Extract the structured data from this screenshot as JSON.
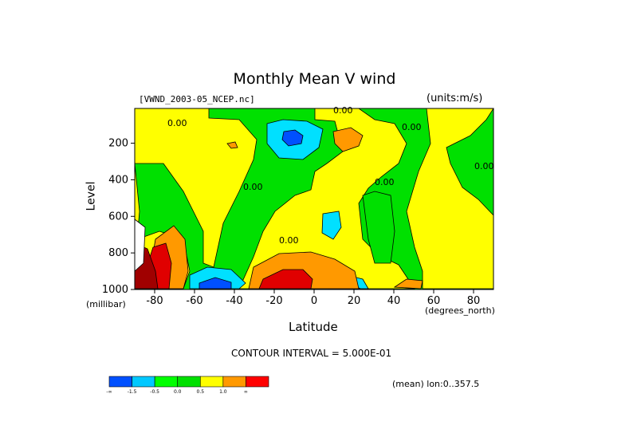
{
  "chart_data": {
    "type": "heatmap",
    "title": "Monthly Mean V wind",
    "dataset": "[VWND_2003-05_NCEP.nc]",
    "units": "(units:m/s)",
    "xlabel": "Latitude",
    "xunit": "(degrees_north)",
    "ylabel": "Level",
    "yunit": "(millibar)",
    "x_ticks": [
      -80,
      -60,
      -40,
      -20,
      0,
      20,
      40,
      60,
      80
    ],
    "y_ticks": [
      200,
      400,
      600,
      800,
      1000
    ],
    "xlim": [
      -90,
      90
    ],
    "ylim": [
      10,
      1000
    ],
    "y_inverted": true,
    "contour_interval_text": "CONTOUR INTERVAL = 5.000E-01",
    "mean_text": "(mean) lon:0..357.5",
    "contour_labels": [
      "0.00",
      "0.00",
      "0.00",
      "0.00",
      "0.00",
      "0.00",
      "0.00"
    ],
    "colorbar": {
      "labels": [
        "-∞",
        "-1.5",
        "-0.5",
        "0.0",
        "0.5",
        "1.0",
        "∞"
      ],
      "colors": [
        "#0050ff",
        "#00c8ff",
        "#00ff00",
        "#00e000",
        "#ffff00",
        "#ff9900",
        "#ff0000"
      ]
    },
    "palette": {
      "strong_negative": "#0050ff",
      "negative": "#00e0ff",
      "near_zero_negative": "#00e000",
      "near_zero_positive": "#ffff00",
      "positive": "#ff9900",
      "strong_positive": "#e00000",
      "extreme_positive": "#a00000"
    }
  }
}
